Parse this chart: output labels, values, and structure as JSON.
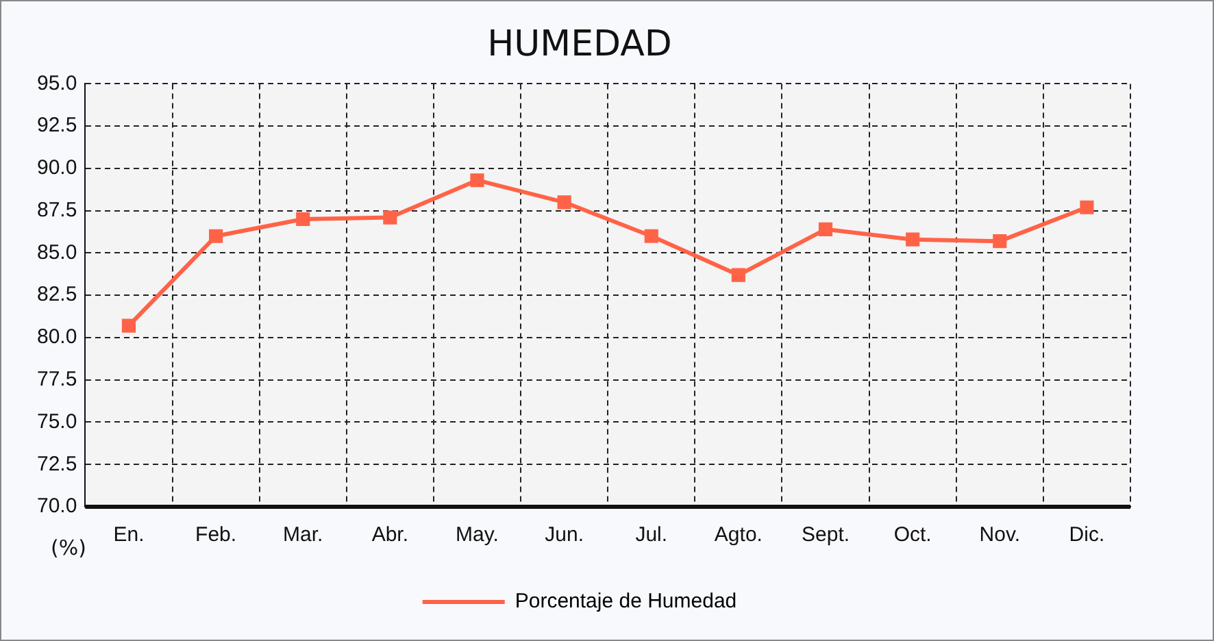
{
  "chart_data": {
    "type": "line",
    "title": "HUMEDAD",
    "ylabel": "(%)",
    "categories": [
      "En.",
      "Feb.",
      "Mar.",
      "Abr.",
      "May.",
      "Jun.",
      "Jul.",
      "Agto.",
      "Sept.",
      "Oct.",
      "Nov.",
      "Dic."
    ],
    "series": [
      {
        "name": "Porcentaje de Humedad",
        "color": "#ff6347",
        "values": [
          80.7,
          86.0,
          87.0,
          87.1,
          89.3,
          88.0,
          86.0,
          83.7,
          86.4,
          85.8,
          85.7,
          87.7
        ]
      }
    ],
    "ylim": [
      70,
      95
    ],
    "yticks": [
      {
        "value": 70,
        "label": "70.0"
      },
      {
        "value": 72.5,
        "label": "72.5"
      },
      {
        "value": 75,
        "label": "75.0"
      },
      {
        "value": 77.5,
        "label": "77.5"
      },
      {
        "value": 80,
        "label": "80.0"
      },
      {
        "value": 82.5,
        "label": "82.5"
      },
      {
        "value": 85,
        "label": "85.0"
      },
      {
        "value": 87.5,
        "label": "87.5"
      },
      {
        "value": 90,
        "label": "90.0"
      },
      {
        "value": 92.5,
        "label": "92.5"
      },
      {
        "value": 95,
        "label": "95.0"
      }
    ],
    "grid": true,
    "legend": "bottom",
    "marker": "square",
    "line_style": "solid"
  }
}
